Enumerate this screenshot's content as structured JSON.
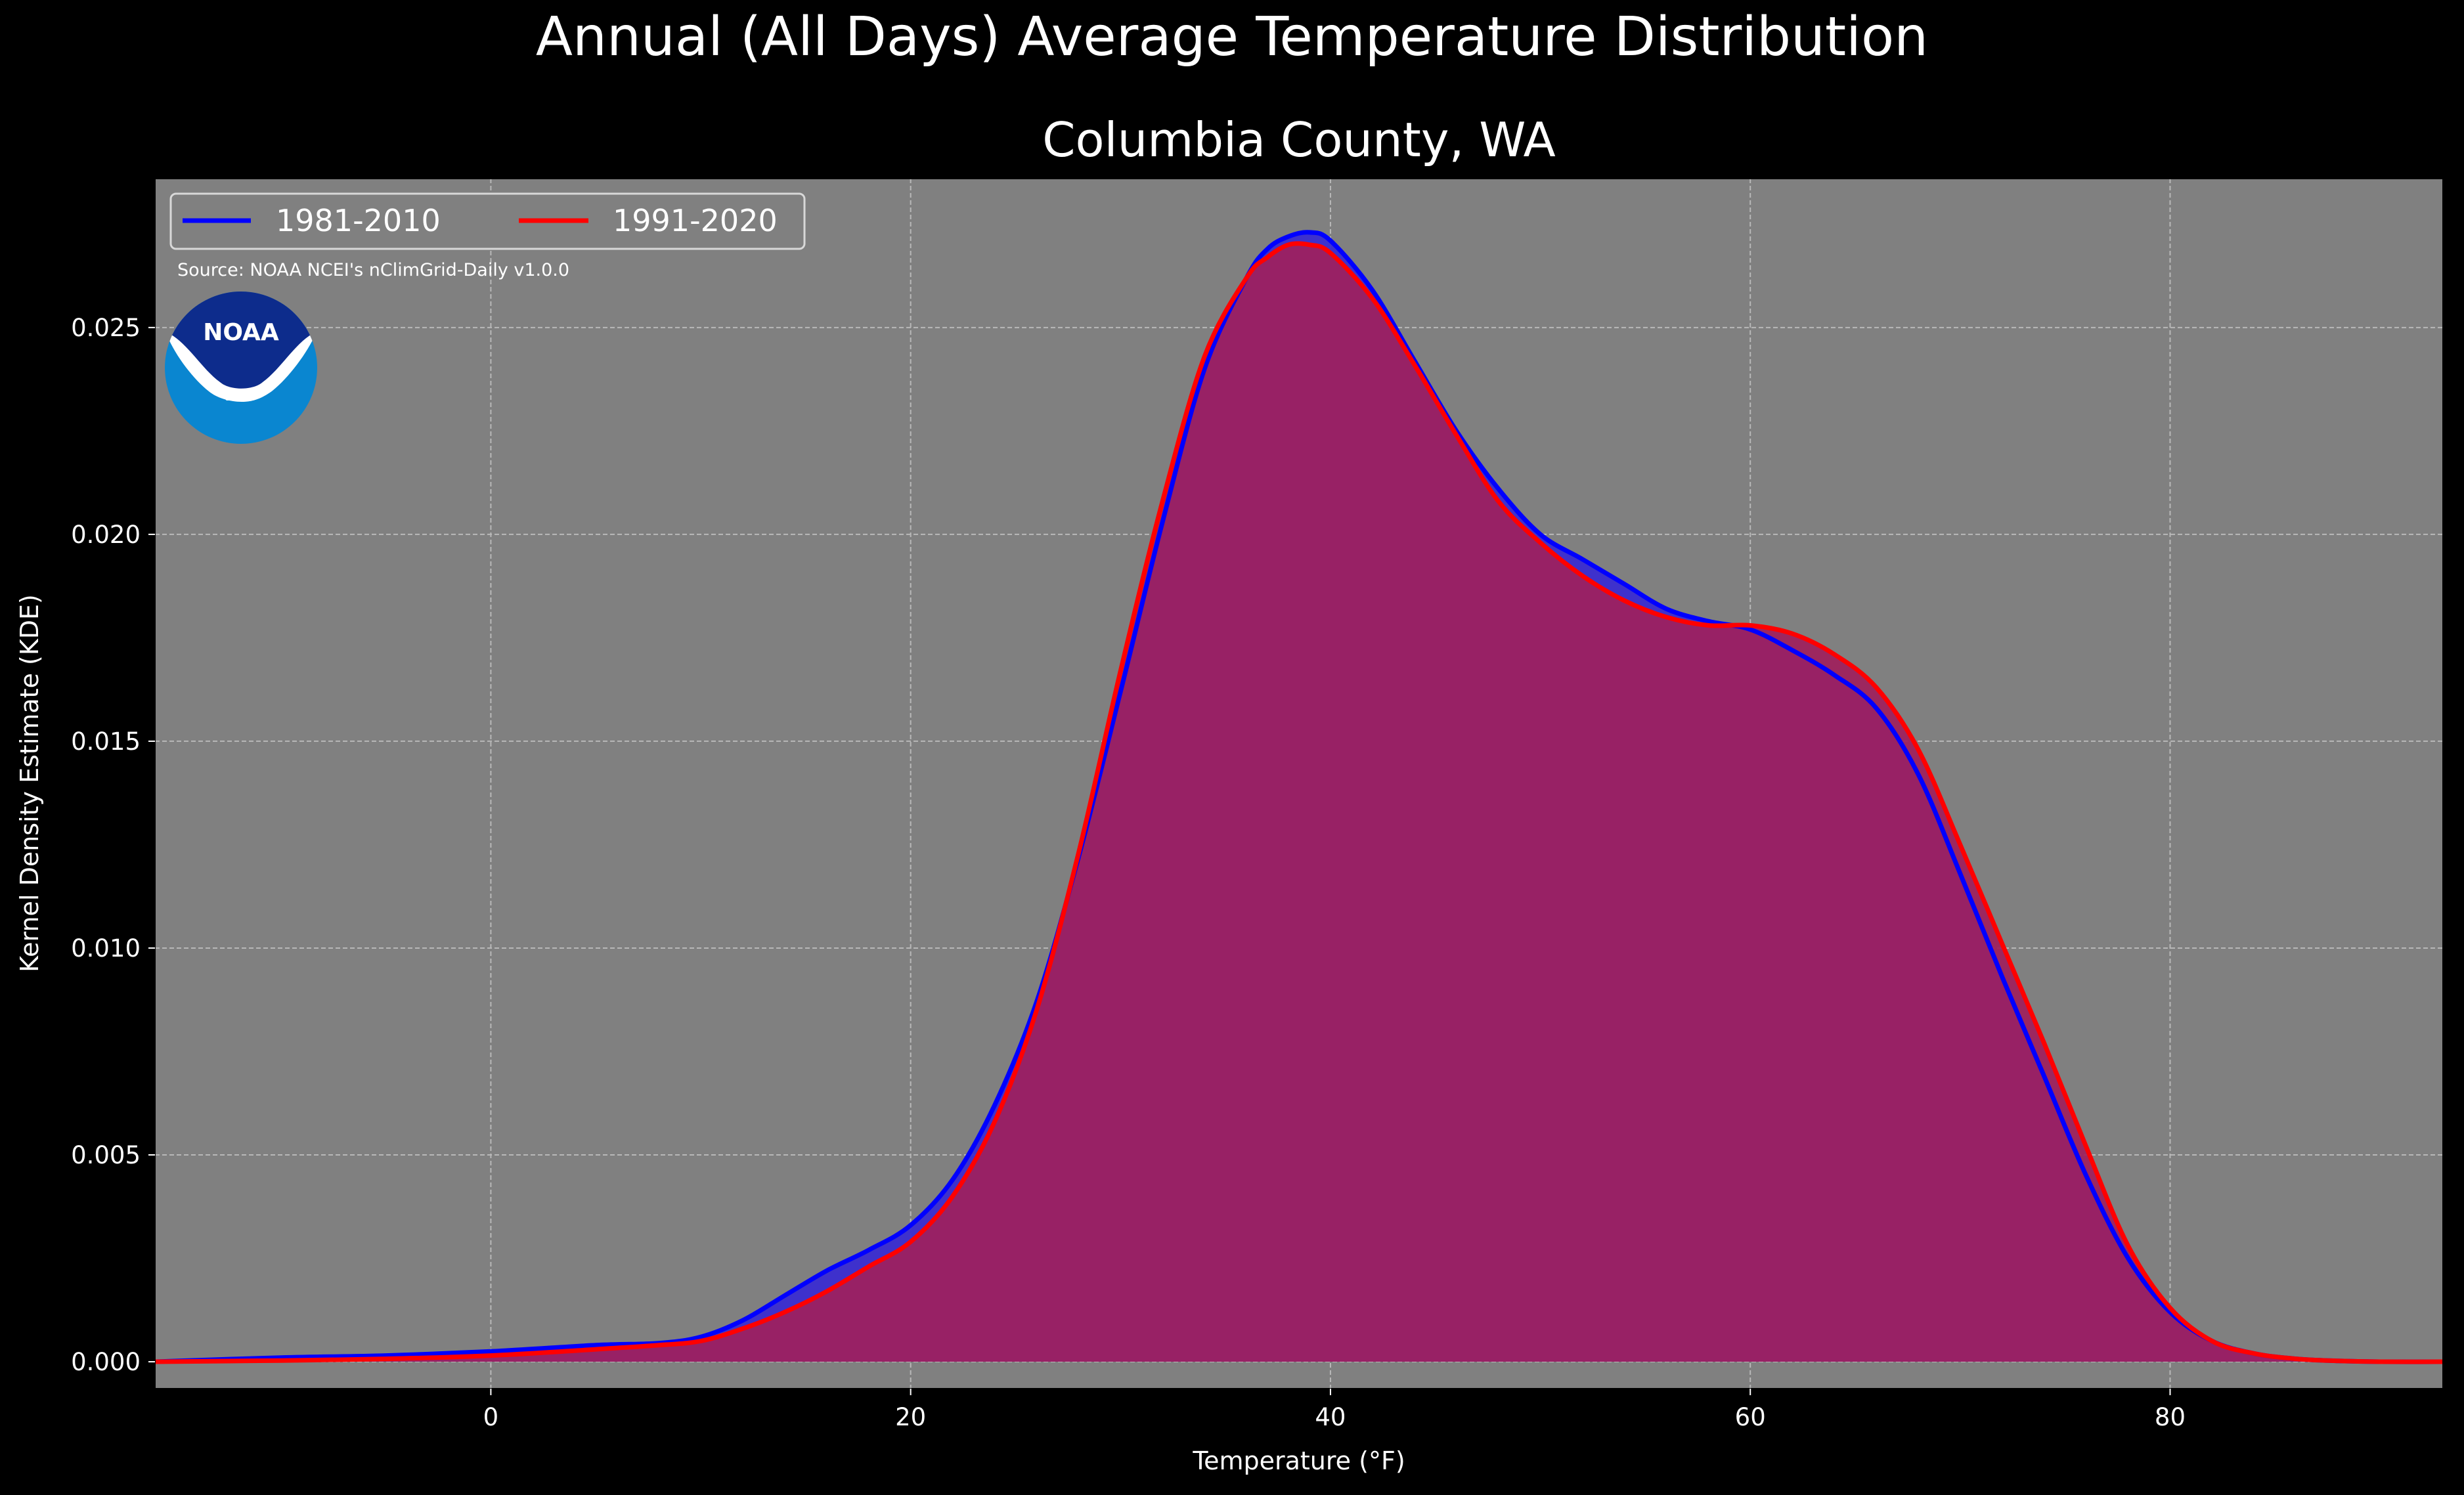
{
  "chart_data": {
    "type": "area",
    "title": "Annual (All Days) Average Temperature Distribution",
    "subtitle": "Columbia County, WA",
    "xlabel": "Temperature (°F)",
    "ylabel": "Kernel Density Estimate (KDE)",
    "xlim": [
      -16,
      93
    ],
    "ylim": [
      -0.00065,
      0.0286
    ],
    "xticks": [
      0,
      20,
      40,
      60,
      80
    ],
    "yticks": [
      0.0,
      0.005,
      0.01,
      0.015,
      0.02,
      0.025
    ],
    "xtick_labels": [
      "0",
      "20",
      "40",
      "60",
      "80"
    ],
    "ytick_labels": [
      "0.000",
      "0.005",
      "0.010",
      "0.015",
      "0.020",
      "0.025"
    ],
    "grid": true,
    "legend_position": "top-left",
    "source_note": "Source: NOAA NCEI's nClimGrid-Daily v1.0.0",
    "logo_text": "NOAA",
    "colors": {
      "background": "#000000",
      "plot_background": "#808080",
      "grid": "#b8b8b8",
      "series_1981": "#0000ff",
      "series_1991": "#ff0000",
      "fill_1981": "#3a2cd0",
      "fill_1991": "#a01f5c",
      "logo_blue_dark": "#0d2c8c",
      "logo_blue_light": "#0a86d0"
    },
    "series": [
      {
        "name": "1981-2010",
        "color": "#0000ff",
        "x": [
          -16,
          -10,
          -5,
          0,
          5,
          8,
          10,
          12,
          14,
          16,
          18,
          20,
          22,
          24,
          26,
          28,
          30,
          32,
          34,
          36,
          37,
          38,
          39,
          40,
          42,
          44,
          46,
          48,
          50,
          52,
          54,
          56,
          58,
          60,
          62,
          64,
          66,
          68,
          70,
          72,
          74,
          76,
          78,
          80,
          82,
          84,
          86,
          88,
          90,
          93
        ],
        "y": [
          0.0,
          0.0001,
          0.00015,
          0.00025,
          0.0004,
          0.00045,
          0.0006,
          0.001,
          0.0016,
          0.0022,
          0.0027,
          0.0033,
          0.0044,
          0.0062,
          0.0087,
          0.0122,
          0.0162,
          0.0203,
          0.024,
          0.0262,
          0.0269,
          0.0272,
          0.0273,
          0.0271,
          0.0259,
          0.0242,
          0.0225,
          0.0211,
          0.02,
          0.0194,
          0.0188,
          0.0182,
          0.0179,
          0.0177,
          0.0172,
          0.0166,
          0.0158,
          0.0142,
          0.0118,
          0.0093,
          0.0069,
          0.0045,
          0.0025,
          0.0012,
          0.0005,
          0.0002,
          7e-05,
          2e-05,
          0.0,
          0.0
        ]
      },
      {
        "name": "1991-2020",
        "color": "#ff0000",
        "x": [
          -16,
          -10,
          -5,
          0,
          5,
          8,
          10,
          12,
          14,
          16,
          18,
          20,
          22,
          24,
          26,
          28,
          30,
          32,
          34,
          36,
          37,
          38,
          39,
          40,
          42,
          44,
          46,
          48,
          50,
          52,
          54,
          56,
          58,
          60,
          62,
          64,
          66,
          68,
          70,
          72,
          74,
          76,
          78,
          80,
          82,
          84,
          86,
          88,
          90,
          93
        ],
        "y": [
          0.0,
          3e-05,
          7e-05,
          0.00015,
          0.0003,
          0.0004,
          0.0005,
          0.0008,
          0.0012,
          0.0017,
          0.0023,
          0.0029,
          0.004,
          0.0058,
          0.0085,
          0.0123,
          0.0167,
          0.0208,
          0.0243,
          0.0262,
          0.0267,
          0.027,
          0.027,
          0.0268,
          0.0257,
          0.0241,
          0.0224,
          0.0208,
          0.0198,
          0.019,
          0.0184,
          0.018,
          0.0178,
          0.0178,
          0.0176,
          0.0171,
          0.0163,
          0.0148,
          0.0125,
          0.0101,
          0.0077,
          0.0052,
          0.0028,
          0.0013,
          0.0005,
          0.0002,
          7e-05,
          2e-05,
          0.0,
          0.0
        ]
      }
    ]
  }
}
